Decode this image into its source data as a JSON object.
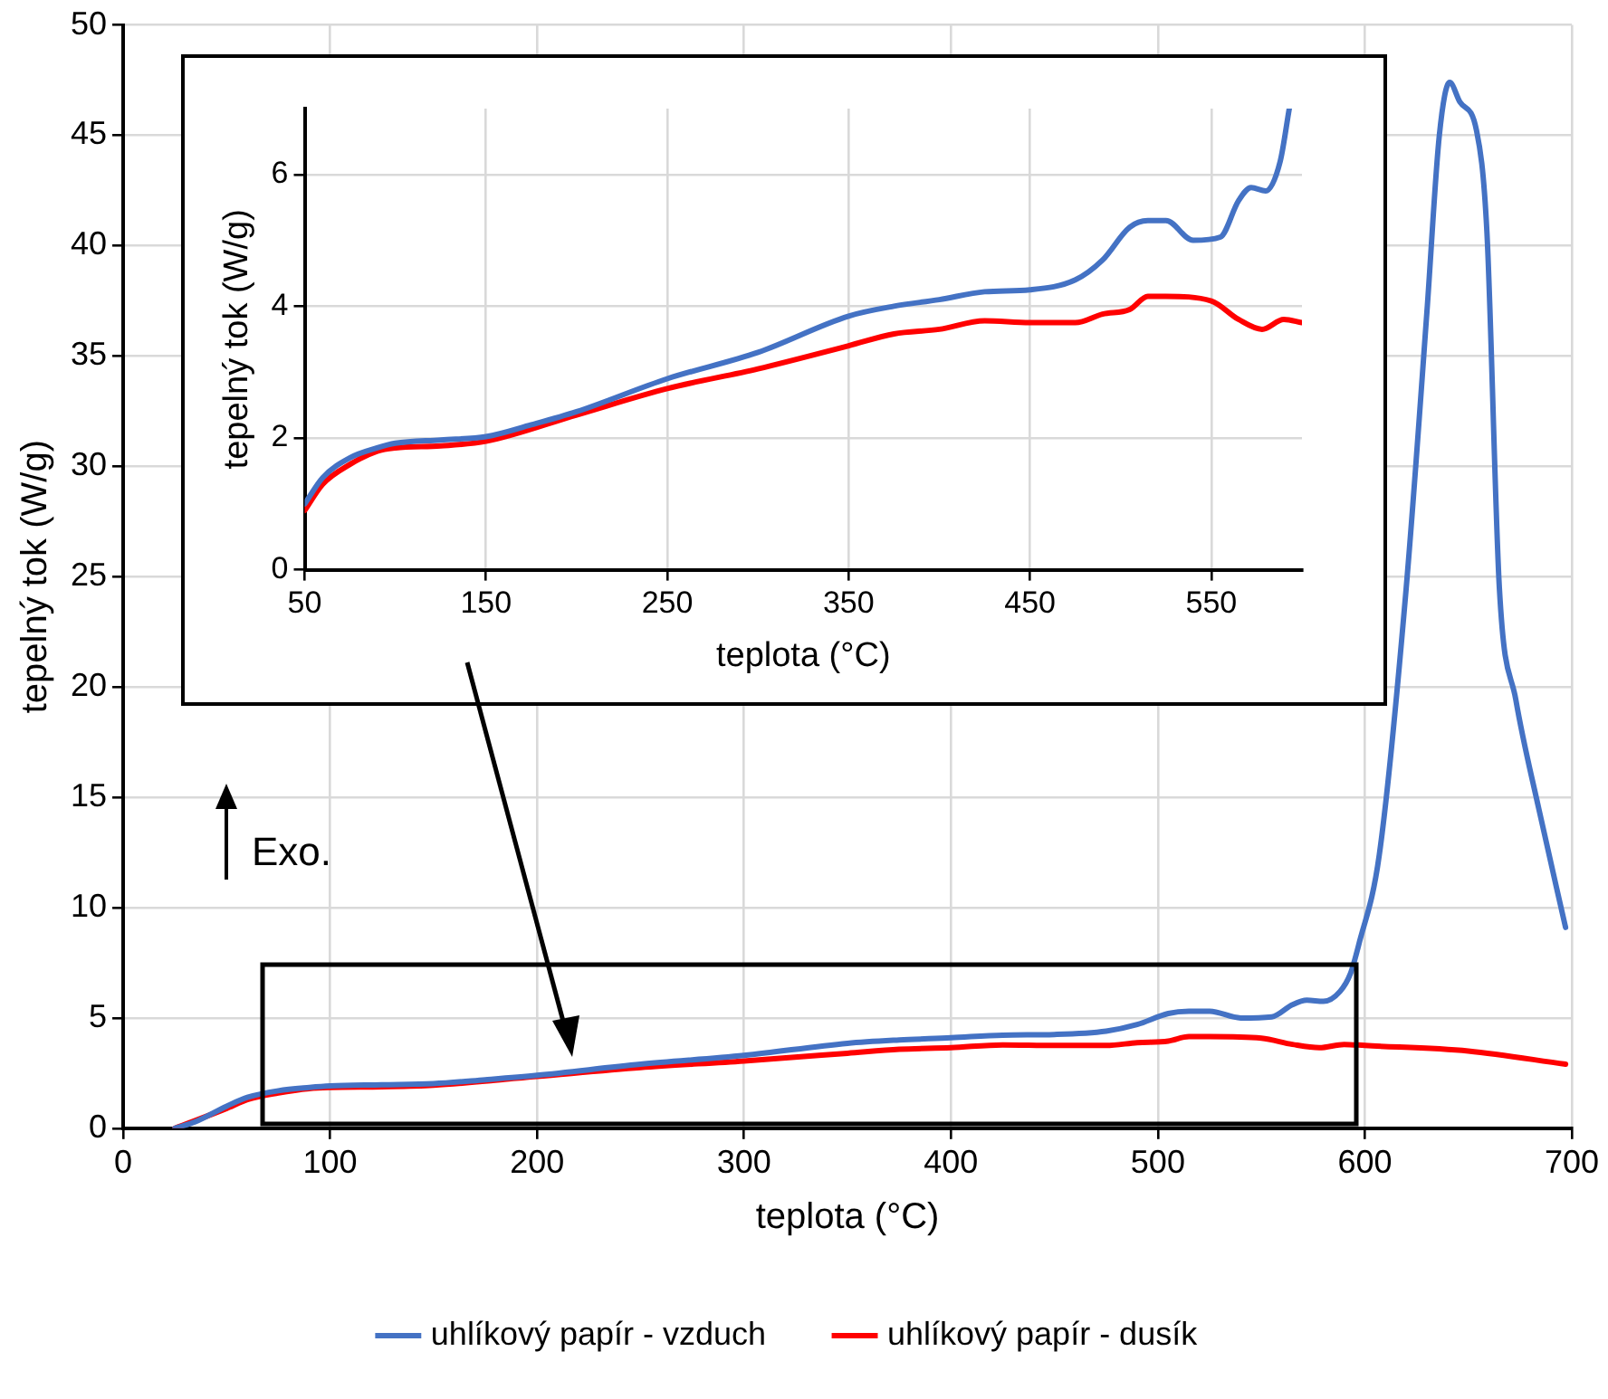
{
  "chart_data": [
    {
      "type": "line",
      "xlabel": "teplota (°C)",
      "ylabel": "tepelný tok (W/g)",
      "xlim": [
        0,
        700
      ],
      "xticks": [
        0,
        100,
        200,
        300,
        400,
        500,
        600,
        700
      ],
      "ylim": [
        0,
        50
      ],
      "yticks": [
        0,
        5,
        10,
        15,
        20,
        25,
        30,
        35,
        40,
        45,
        50
      ],
      "grid": true,
      "legend": "bottom",
      "annotations": [
        "Exo."
      ],
      "series": [
        {
          "name": "uhlíkový papír - vzduch",
          "color": "#4472c4",
          "x": [
            25,
            35,
            50,
            60,
            75,
            90,
            100,
            125,
            150,
            175,
            200,
            250,
            300,
            350,
            375,
            400,
            425,
            450,
            475,
            490,
            505,
            515,
            525,
            540,
            555,
            565,
            572,
            580,
            588,
            593,
            597,
            607,
            620,
            630,
            636,
            641,
            646,
            654,
            659,
            665,
            673,
            684,
            697
          ],
          "values": [
            0,
            0.3,
            1.0,
            1.4,
            1.7,
            1.85,
            1.92,
            1.97,
            2.02,
            2.2,
            2.4,
            2.9,
            3.3,
            3.85,
            4.0,
            4.1,
            4.22,
            4.25,
            4.4,
            4.7,
            5.2,
            5.3,
            5.3,
            5.0,
            5.05,
            5.6,
            5.8,
            5.75,
            6.2,
            7.0,
            8.3,
            12.4,
            24.5,
            37,
            45,
            47.4,
            46.5,
            45.2,
            40.6,
            24.5,
            19.4,
            14.5,
            9.1
          ]
        },
        {
          "name": "uhlíkový papír - dusík",
          "color": "#ff0000",
          "x": [
            25,
            50,
            60,
            75,
            90,
            100,
            125,
            150,
            200,
            250,
            300,
            350,
            375,
            400,
            425,
            450,
            475,
            490,
            505,
            515,
            525,
            550,
            565,
            578,
            590,
            600,
            650,
            697
          ],
          "values": [
            0,
            0.9,
            1.3,
            1.6,
            1.8,
            1.85,
            1.88,
            1.95,
            2.35,
            2.75,
            3.05,
            3.4,
            3.58,
            3.65,
            3.78,
            3.75,
            3.75,
            3.88,
            3.95,
            4.15,
            4.15,
            4.08,
            3.8,
            3.65,
            3.8,
            3.75,
            3.5,
            2.9
          ]
        }
      ]
    },
    {
      "type": "line",
      "xlabel": "teplota (°C)",
      "ylabel": "tepelný tok (W/g)",
      "xlim": [
        50,
        600
      ],
      "xticks": [
        50,
        150,
        250,
        350,
        450,
        550
      ],
      "ylim": [
        0,
        7
      ],
      "yticks": [
        0,
        2,
        4,
        6
      ],
      "grid": true,
      "series": [
        {
          "color": "#4472c4",
          "x": [
            50,
            60,
            75,
            90,
            100,
            125,
            150,
            175,
            200,
            250,
            300,
            350,
            375,
            400,
            425,
            450,
            475,
            490,
            505,
            515,
            525,
            540,
            555,
            565,
            572,
            580,
            588,
            593
          ],
          "values": [
            1.0,
            1.4,
            1.7,
            1.85,
            1.92,
            1.97,
            2.02,
            2.2,
            2.4,
            2.9,
            3.3,
            3.85,
            4.0,
            4.1,
            4.22,
            4.25,
            4.4,
            4.7,
            5.2,
            5.3,
            5.3,
            5.0,
            5.05,
            5.6,
            5.8,
            5.75,
            6.2,
            7.0
          ]
        },
        {
          "color": "#ff0000",
          "x": [
            50,
            60,
            75,
            90,
            100,
            125,
            150,
            200,
            250,
            300,
            350,
            375,
            400,
            425,
            450,
            475,
            490,
            505,
            515,
            525,
            550,
            565,
            578,
            590,
            600
          ],
          "values": [
            0.9,
            1.3,
            1.6,
            1.8,
            1.85,
            1.88,
            1.95,
            2.35,
            2.75,
            3.05,
            3.4,
            3.58,
            3.65,
            3.78,
            3.75,
            3.75,
            3.88,
            3.95,
            4.15,
            4.15,
            4.08,
            3.8,
            3.65,
            3.8,
            3.75
          ]
        }
      ]
    }
  ]
}
